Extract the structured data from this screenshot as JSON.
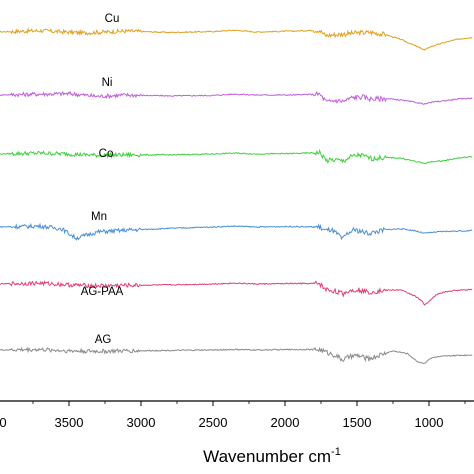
{
  "chart_data": {
    "type": "line",
    "title": "",
    "xlabel": "Wavenumber cm",
    "xlabel_superscript": "-1",
    "ylabel": "",
    "xlim": [
      4000,
      700
    ],
    "x_reversed": true,
    "x_ticks": [
      3500,
      3000,
      2500,
      2000,
      1500,
      1000
    ],
    "x_tick_labels": [
      "3500",
      "3000",
      "2500",
      "2000",
      "1500",
      "1000"
    ],
    "partial_tick_label": "0",
    "grid": false,
    "legend": "none",
    "series": [
      {
        "name": "Cu",
        "color": "#E0A020",
        "baseline": 0,
        "points": [
          [
            4000,
            0
          ],
          [
            3700,
            0.15
          ],
          [
            3400,
            -0.1
          ],
          [
            3100,
            0.1
          ],
          [
            2800,
            -0.05
          ],
          [
            2500,
            0.05
          ],
          [
            2350,
            0.2
          ],
          [
            2200,
            0
          ],
          [
            1950,
            0.1
          ],
          [
            1760,
            0.2
          ],
          [
            1720,
            -0.4
          ],
          [
            1650,
            -0.3
          ],
          [
            1580,
            -0.2
          ],
          [
            1500,
            -0.1
          ],
          [
            1400,
            -0.05
          ],
          [
            1300,
            -0.3
          ],
          [
            1200,
            -0.8
          ],
          [
            1100,
            -1.5
          ],
          [
            1030,
            -2.0
          ],
          [
            1000,
            -1.7
          ],
          [
            900,
            -1.2
          ],
          [
            800,
            -0.8
          ],
          [
            700,
            -0.6
          ]
        ]
      },
      {
        "name": "Ni",
        "color": "#C060D8",
        "baseline": 0,
        "points": [
          [
            4000,
            0
          ],
          [
            3700,
            0.1
          ],
          [
            3500,
            0.15
          ],
          [
            3300,
            -0.15
          ],
          [
            3100,
            0
          ],
          [
            2800,
            -0.1
          ],
          [
            2500,
            -0.05
          ],
          [
            2350,
            0.1
          ],
          [
            2200,
            0
          ],
          [
            1950,
            0
          ],
          [
            1760,
            0.1
          ],
          [
            1710,
            -0.8
          ],
          [
            1650,
            -0.6
          ],
          [
            1590,
            -0.7
          ],
          [
            1540,
            -0.3
          ],
          [
            1460,
            -0.2
          ],
          [
            1400,
            -0.45
          ],
          [
            1300,
            -0.4
          ],
          [
            1200,
            -0.55
          ],
          [
            1100,
            -0.8
          ],
          [
            1030,
            -1.0
          ],
          [
            980,
            -0.8
          ],
          [
            900,
            -0.65
          ],
          [
            800,
            -0.45
          ],
          [
            700,
            -0.35
          ]
        ]
      },
      {
        "name": "Co",
        "color": "#40D040",
        "baseline": 0,
        "points": [
          [
            4000,
            0
          ],
          [
            3700,
            0.1
          ],
          [
            3500,
            0
          ],
          [
            3300,
            -0.15
          ],
          [
            3100,
            -0.1
          ],
          [
            2800,
            -0.1
          ],
          [
            2500,
            0
          ],
          [
            2350,
            0.1
          ],
          [
            2200,
            0
          ],
          [
            1950,
            0.05
          ],
          [
            1760,
            0.15
          ],
          [
            1710,
            -0.75
          ],
          [
            1650,
            -0.65
          ],
          [
            1600,
            -0.8
          ],
          [
            1540,
            -0.3
          ],
          [
            1480,
            -0.1
          ],
          [
            1400,
            -0.5
          ],
          [
            1300,
            -0.4
          ],
          [
            1200,
            -0.45
          ],
          [
            1100,
            -0.8
          ],
          [
            1030,
            -1.05
          ],
          [
            980,
            -0.85
          ],
          [
            900,
            -0.75
          ],
          [
            800,
            -0.45
          ],
          [
            700,
            -0.3
          ]
        ]
      },
      {
        "name": "Mn",
        "color": "#4A90D0",
        "baseline": 0,
        "points": [
          [
            4000,
            0
          ],
          [
            3700,
            0.1
          ],
          [
            3550,
            -0.2
          ],
          [
            3450,
            -1.25
          ],
          [
            3380,
            -0.9
          ],
          [
            3300,
            -0.55
          ],
          [
            3100,
            -0.35
          ],
          [
            2800,
            -0.15
          ],
          [
            2500,
            0
          ],
          [
            2350,
            0.1
          ],
          [
            2200,
            0
          ],
          [
            1950,
            0.05
          ],
          [
            1760,
            0
          ],
          [
            1720,
            -0.4
          ],
          [
            1680,
            -0.3
          ],
          [
            1620,
            -1.0
          ],
          [
            1600,
            -1.4
          ],
          [
            1570,
            -0.8
          ],
          [
            1520,
            -0.3
          ],
          [
            1420,
            -0.7
          ],
          [
            1300,
            -0.3
          ],
          [
            1200,
            -0.2
          ],
          [
            1100,
            -0.4
          ],
          [
            1030,
            -0.7
          ],
          [
            980,
            -0.6
          ],
          [
            900,
            -0.5
          ],
          [
            800,
            -0.45
          ],
          [
            700,
            -0.4
          ]
        ]
      },
      {
        "name": "AG-PAA",
        "color": "#E04070",
        "baseline": 0,
        "points": [
          [
            4000,
            0
          ],
          [
            3700,
            0.1
          ],
          [
            3500,
            -0.1
          ],
          [
            3300,
            -0.2
          ],
          [
            3100,
            -0.15
          ],
          [
            2800,
            -0.1
          ],
          [
            2500,
            0
          ],
          [
            2350,
            0.1
          ],
          [
            2200,
            0
          ],
          [
            1950,
            0.05
          ],
          [
            1760,
            0.05
          ],
          [
            1720,
            -0.6
          ],
          [
            1650,
            -0.8
          ],
          [
            1600,
            -1.1
          ],
          [
            1560,
            -0.8
          ],
          [
            1500,
            -0.6
          ],
          [
            1420,
            -0.9
          ],
          [
            1300,
            -0.7
          ],
          [
            1200,
            -0.65
          ],
          [
            1100,
            -1.3
          ],
          [
            1050,
            -1.9
          ],
          [
            1030,
            -2.3
          ],
          [
            990,
            -1.8
          ],
          [
            950,
            -1.2
          ],
          [
            900,
            -0.9
          ],
          [
            800,
            -0.7
          ],
          [
            700,
            -0.6
          ]
        ]
      },
      {
        "name": "AG",
        "color": "#8A8A8A",
        "baseline": 0,
        "points": [
          [
            4000,
            0
          ],
          [
            3700,
            0.05
          ],
          [
            3500,
            -0.1
          ],
          [
            3300,
            -0.15
          ],
          [
            3100,
            -0.1
          ],
          [
            2800,
            -0.05
          ],
          [
            2500,
            0
          ],
          [
            2350,
            0.05
          ],
          [
            2200,
            0
          ],
          [
            1950,
            0.05
          ],
          [
            1760,
            0.05
          ],
          [
            1720,
            -0.2
          ],
          [
            1650,
            -0.6
          ],
          [
            1600,
            -1.1
          ],
          [
            1560,
            -0.8
          ],
          [
            1500,
            -0.6
          ],
          [
            1420,
            -1.0
          ],
          [
            1330,
            -0.5
          ],
          [
            1250,
            -0.1
          ],
          [
            1150,
            -0.4
          ],
          [
            1080,
            -1.3
          ],
          [
            1030,
            -1.5
          ],
          [
            1000,
            -1.0
          ],
          [
            960,
            -0.8
          ],
          [
            900,
            -0.7
          ],
          [
            800,
            -0.6
          ],
          [
            700,
            -0.55
          ]
        ]
      }
    ]
  }
}
